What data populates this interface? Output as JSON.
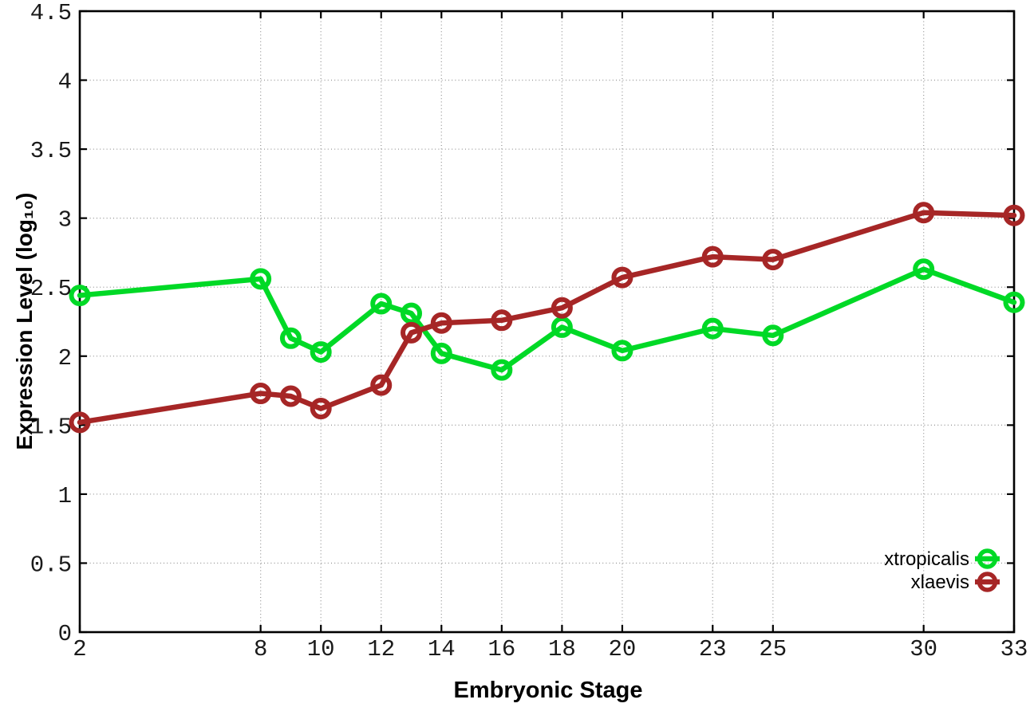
{
  "page": {
    "background": "#ffffff"
  },
  "chart_data": {
    "type": "line",
    "title": "",
    "xlabel": "Embryonic Stage",
    "ylabel": "Expression Level (log₁₀)",
    "xlim": [
      2,
      33
    ],
    "ylim": [
      0,
      4.5
    ],
    "xticks": [
      2,
      8,
      10,
      12,
      14,
      16,
      18,
      20,
      23,
      25,
      30,
      33
    ],
    "yticks": [
      0,
      0.5,
      1,
      1.5,
      2,
      2.5,
      3,
      3.5,
      4,
      4.5
    ],
    "grid": true,
    "legend_position": "bottom-right-inside",
    "marker": "open-circle",
    "x": [
      2,
      8,
      9,
      10,
      12,
      13,
      14,
      16,
      18,
      20,
      23,
      25,
      30,
      33
    ],
    "series": [
      {
        "name": "xtropicalis",
        "color": "#00d926",
        "values": [
          2.44,
          2.56,
          2.13,
          2.03,
          2.38,
          2.31,
          2.02,
          1.9,
          2.21,
          2.04,
          2.2,
          2.15,
          2.63,
          2.39
        ]
      },
      {
        "name": "xlaevis",
        "color": "#a62626",
        "values": [
          1.52,
          1.73,
          1.71,
          1.62,
          1.79,
          2.17,
          2.24,
          2.26,
          2.35,
          2.57,
          2.72,
          2.7,
          3.04,
          3.02
        ]
      }
    ]
  },
  "style": {
    "grid_color": "#9a9a9a",
    "border_color": "#000000",
    "tick_label_color": "#1a1a1a",
    "line_width": 6.5,
    "marker_radius": 10.5,
    "marker_stroke": 6
  }
}
